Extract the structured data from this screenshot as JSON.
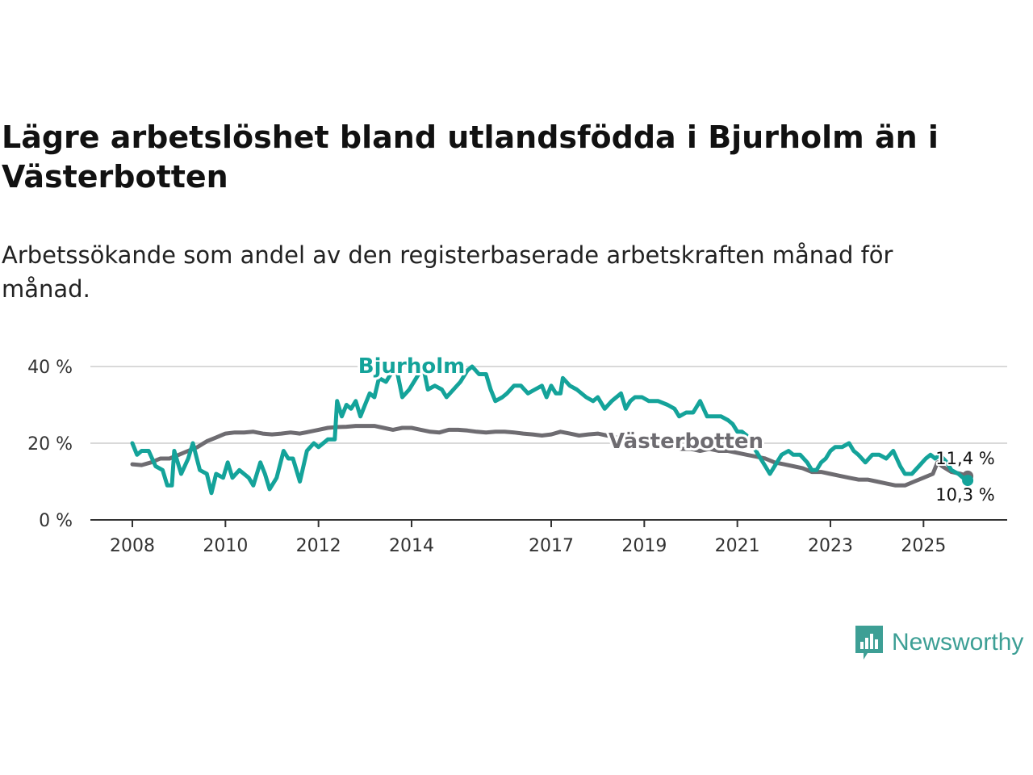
{
  "title": "Lägre arbetslöshet bland utlandsfödda i Bjurholm än i Västerbotten",
  "subtitle": "Arbetssökande som andel av den registerbaserade arbetskraften månad för månad.",
  "brand": {
    "name": "Newsworthy",
    "color": "#3d9f95"
  },
  "chart_data": {
    "type": "line",
    "title": "Lägre arbetslöshet bland utlandsfödda i Bjurholm än i Västerbotten",
    "xlabel": "",
    "ylabel": "",
    "xlim": [
      2008,
      2026.1
    ],
    "ylim": [
      0,
      40
    ],
    "yticks": [
      0,
      20,
      40
    ],
    "ytick_labels": [
      "0 %",
      "20 %",
      "40 %"
    ],
    "xticks": [
      2008,
      2010,
      2012,
      2014,
      2017,
      2019,
      2021,
      2023,
      2025
    ],
    "xtick_labels": [
      "2008",
      "2010",
      "2012",
      "2014",
      "2017",
      "2019",
      "2021",
      "2023",
      "2025"
    ],
    "grid": true,
    "legend": "inline labels",
    "series": [
      {
        "name": "Bjurholm",
        "color": "#14a39a",
        "label": "Bjurholm",
        "end_label": "10,3 %",
        "points": [
          [
            2008.0,
            20
          ],
          [
            2008.1,
            17
          ],
          [
            2008.2,
            18
          ],
          [
            2008.35,
            18
          ],
          [
            2008.5,
            14
          ],
          [
            2008.65,
            13
          ],
          [
            2008.75,
            9
          ],
          [
            2008.85,
            9
          ],
          [
            2008.9,
            18
          ],
          [
            2009.05,
            12
          ],
          [
            2009.2,
            16
          ],
          [
            2009.3,
            20
          ],
          [
            2009.45,
            13
          ],
          [
            2009.6,
            12
          ],
          [
            2009.7,
            7
          ],
          [
            2009.8,
            12
          ],
          [
            2009.95,
            11
          ],
          [
            2010.05,
            15
          ],
          [
            2010.15,
            11
          ],
          [
            2010.3,
            13
          ],
          [
            2010.5,
            11
          ],
          [
            2010.6,
            9
          ],
          [
            2010.75,
            15
          ],
          [
            2010.85,
            12
          ],
          [
            2010.95,
            8
          ],
          [
            2011.1,
            11
          ],
          [
            2011.25,
            18
          ],
          [
            2011.35,
            16
          ],
          [
            2011.45,
            16
          ],
          [
            2011.6,
            10
          ],
          [
            2011.75,
            18
          ],
          [
            2011.9,
            20
          ],
          [
            2012.0,
            19
          ],
          [
            2012.2,
            21
          ],
          [
            2012.35,
            21
          ],
          [
            2012.4,
            31
          ],
          [
            2012.5,
            27
          ],
          [
            2012.6,
            30
          ],
          [
            2012.7,
            29
          ],
          [
            2012.8,
            31
          ],
          [
            2012.9,
            27
          ],
          [
            2013.0,
            30
          ],
          [
            2013.1,
            33
          ],
          [
            2013.2,
            32
          ],
          [
            2013.3,
            37
          ],
          [
            2013.45,
            36
          ],
          [
            2013.6,
            39
          ],
          [
            2013.7,
            38
          ],
          [
            2013.8,
            32
          ],
          [
            2013.95,
            34
          ],
          [
            2014.1,
            37
          ],
          [
            2014.25,
            40
          ],
          [
            2014.35,
            34
          ],
          [
            2014.5,
            35
          ],
          [
            2014.65,
            34
          ],
          [
            2014.75,
            32
          ],
          [
            2014.9,
            34
          ],
          [
            2015.05,
            36
          ],
          [
            2015.2,
            39
          ],
          [
            2015.3,
            40
          ],
          [
            2015.45,
            38
          ],
          [
            2015.6,
            38
          ],
          [
            2015.7,
            34
          ],
          [
            2015.8,
            31
          ],
          [
            2015.95,
            32
          ],
          [
            2016.05,
            33
          ],
          [
            2016.2,
            35
          ],
          [
            2016.35,
            35
          ],
          [
            2016.5,
            33
          ],
          [
            2016.65,
            34
          ],
          [
            2016.8,
            35
          ],
          [
            2016.9,
            32
          ],
          [
            2017.0,
            35
          ],
          [
            2017.1,
            33
          ],
          [
            2017.2,
            33
          ],
          [
            2017.25,
            37
          ],
          [
            2017.4,
            35
          ],
          [
            2017.55,
            34
          ],
          [
            2017.75,
            32
          ],
          [
            2017.9,
            31
          ],
          [
            2018.0,
            32
          ],
          [
            2018.15,
            29
          ],
          [
            2018.3,
            31
          ],
          [
            2018.5,
            33
          ],
          [
            2018.6,
            29
          ],
          [
            2018.7,
            31
          ],
          [
            2018.8,
            32
          ],
          [
            2018.95,
            32
          ],
          [
            2019.1,
            31
          ],
          [
            2019.3,
            31
          ],
          [
            2019.5,
            30
          ],
          [
            2019.65,
            29
          ],
          [
            2019.75,
            27
          ],
          [
            2019.9,
            28
          ],
          [
            2020.05,
            28
          ],
          [
            2020.2,
            31
          ],
          [
            2020.35,
            27
          ],
          [
            2020.5,
            27
          ],
          [
            2020.65,
            27
          ],
          [
            2020.8,
            26
          ],
          [
            2020.9,
            25
          ],
          [
            2021.0,
            23
          ],
          [
            2021.1,
            23
          ],
          [
            2021.2,
            22
          ],
          [
            2021.3,
            20
          ],
          [
            2021.45,
            17
          ],
          [
            2021.6,
            14
          ],
          [
            2021.7,
            12
          ],
          [
            2021.85,
            15
          ],
          [
            2021.95,
            17
          ],
          [
            2022.1,
            18
          ],
          [
            2022.2,
            17
          ],
          [
            2022.35,
            17
          ],
          [
            2022.5,
            15
          ],
          [
            2022.6,
            13
          ],
          [
            2022.7,
            13
          ],
          [
            2022.8,
            15
          ],
          [
            2022.9,
            16
          ],
          [
            2023.0,
            18
          ],
          [
            2023.1,
            19
          ],
          [
            2023.25,
            19
          ],
          [
            2023.4,
            20
          ],
          [
            2023.5,
            18
          ],
          [
            2023.6,
            17
          ],
          [
            2023.75,
            15
          ],
          [
            2023.9,
            17
          ],
          [
            2024.05,
            17
          ],
          [
            2024.2,
            16
          ],
          [
            2024.35,
            18
          ],
          [
            2024.5,
            14
          ],
          [
            2024.6,
            12
          ],
          [
            2024.75,
            12
          ],
          [
            2024.9,
            14
          ],
          [
            2025.05,
            16
          ],
          [
            2025.15,
            17
          ],
          [
            2025.25,
            16
          ],
          [
            2025.35,
            17
          ],
          [
            2025.5,
            15
          ],
          [
            2025.6,
            13
          ],
          [
            2025.75,
            12
          ],
          [
            2025.85,
            11
          ],
          [
            2025.95,
            10.3
          ]
        ]
      },
      {
        "name": "Västerbotten",
        "color": "#6e6c71",
        "label": "Västerbotten",
        "end_label": "11,4 %",
        "points": [
          [
            2008.0,
            14.5
          ],
          [
            2008.2,
            14.3
          ],
          [
            2008.4,
            15
          ],
          [
            2008.6,
            16
          ],
          [
            2008.8,
            16
          ],
          [
            2009.0,
            17
          ],
          [
            2009.2,
            18
          ],
          [
            2009.4,
            19
          ],
          [
            2009.6,
            20.5
          ],
          [
            2009.8,
            21.5
          ],
          [
            2010.0,
            22.5
          ],
          [
            2010.2,
            22.8
          ],
          [
            2010.4,
            22.8
          ],
          [
            2010.6,
            23
          ],
          [
            2010.8,
            22.5
          ],
          [
            2011.0,
            22.3
          ],
          [
            2011.2,
            22.5
          ],
          [
            2011.4,
            22.8
          ],
          [
            2011.6,
            22.5
          ],
          [
            2011.8,
            23
          ],
          [
            2012.0,
            23.5
          ],
          [
            2012.2,
            24
          ],
          [
            2012.4,
            24.2
          ],
          [
            2012.6,
            24.3
          ],
          [
            2012.8,
            24.5
          ],
          [
            2013.0,
            24.5
          ],
          [
            2013.2,
            24.5
          ],
          [
            2013.4,
            24
          ],
          [
            2013.6,
            23.5
          ],
          [
            2013.8,
            24
          ],
          [
            2014.0,
            24
          ],
          [
            2014.2,
            23.5
          ],
          [
            2014.4,
            23
          ],
          [
            2014.6,
            22.8
          ],
          [
            2014.8,
            23.5
          ],
          [
            2015.0,
            23.5
          ],
          [
            2015.2,
            23.3
          ],
          [
            2015.4,
            23
          ],
          [
            2015.6,
            22.8
          ],
          [
            2015.8,
            23
          ],
          [
            2016.0,
            23
          ],
          [
            2016.2,
            22.8
          ],
          [
            2016.4,
            22.5
          ],
          [
            2016.6,
            22.3
          ],
          [
            2016.8,
            22
          ],
          [
            2017.0,
            22.3
          ],
          [
            2017.2,
            23
          ],
          [
            2017.4,
            22.5
          ],
          [
            2017.6,
            22
          ],
          [
            2017.8,
            22.3
          ],
          [
            2018.0,
            22.5
          ],
          [
            2018.2,
            22
          ],
          [
            2018.4,
            21.5
          ],
          [
            2018.6,
            21
          ],
          [
            2018.8,
            20.5
          ],
          [
            2019.0,
            20.5
          ],
          [
            2019.2,
            20
          ],
          [
            2019.4,
            19.5
          ],
          [
            2019.6,
            19
          ],
          [
            2019.8,
            18.5
          ],
          [
            2020.0,
            18.5
          ],
          [
            2020.2,
            18
          ],
          [
            2020.4,
            18.5
          ],
          [
            2020.6,
            18
          ],
          [
            2020.8,
            18
          ],
          [
            2021.0,
            17.5
          ],
          [
            2021.2,
            17
          ],
          [
            2021.4,
            16.5
          ],
          [
            2021.6,
            16
          ],
          [
            2021.8,
            15
          ],
          [
            2022.0,
            14.5
          ],
          [
            2022.2,
            14
          ],
          [
            2022.4,
            13.5
          ],
          [
            2022.6,
            12.5
          ],
          [
            2022.8,
            12.5
          ],
          [
            2023.0,
            12
          ],
          [
            2023.2,
            11.5
          ],
          [
            2023.4,
            11
          ],
          [
            2023.6,
            10.5
          ],
          [
            2023.8,
            10.5
          ],
          [
            2024.0,
            10
          ],
          [
            2024.2,
            9.5
          ],
          [
            2024.4,
            9
          ],
          [
            2024.6,
            9
          ],
          [
            2024.8,
            10
          ],
          [
            2025.0,
            11
          ],
          [
            2025.2,
            12
          ],
          [
            2025.3,
            15
          ],
          [
            2025.4,
            14
          ],
          [
            2025.6,
            12.5
          ],
          [
            2025.8,
            12
          ],
          [
            2025.95,
            11.4
          ]
        ]
      }
    ]
  }
}
